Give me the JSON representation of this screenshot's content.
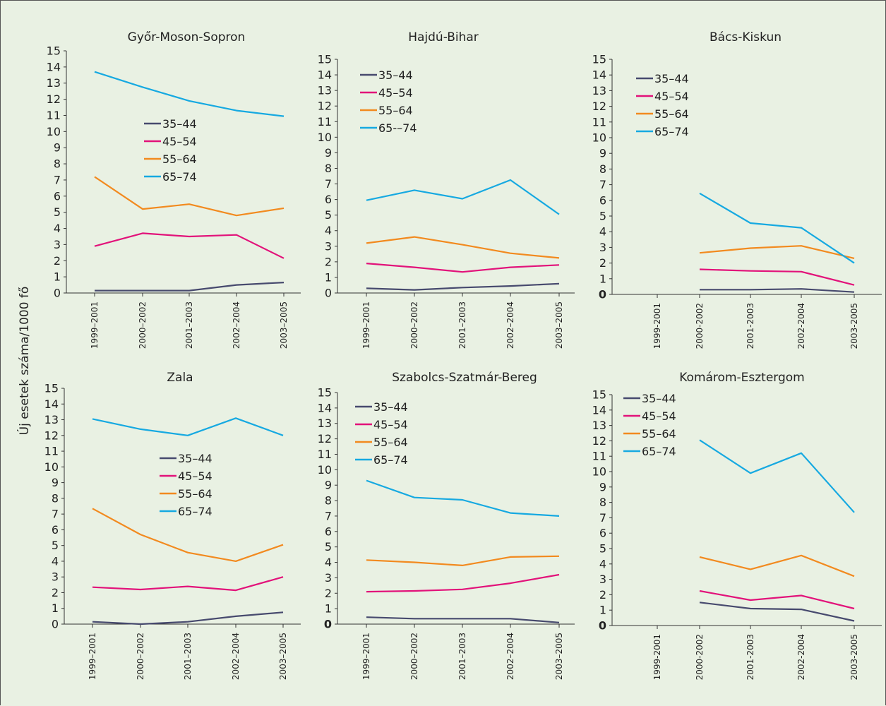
{
  "shared_ylabel": "Új esetek száma/1000 fő",
  "chart_data": [
    {
      "type": "line",
      "title": "Győr-Moson-Sopron",
      "categories": [
        "1999–2001",
        "2000–2002",
        "2001–2003",
        "2002–2004",
        "2003–2005"
      ],
      "ylim": [
        0,
        15
      ],
      "yticks": [
        "0",
        "1",
        "2",
        "3",
        "4",
        "5",
        "6",
        "7",
        "8",
        "9",
        "10",
        "11",
        "12",
        "13",
        "14",
        "15"
      ],
      "legend_placement": "center",
      "series": [
        {
          "name": "35–44",
          "color": "#474a6e",
          "values": [
            0.15,
            0.15,
            0.15,
            0.5,
            0.65
          ]
        },
        {
          "name": "45–54",
          "color": "#e2127a",
          "values": [
            2.9,
            3.7,
            3.5,
            3.6,
            2.15
          ]
        },
        {
          "name": "55–64",
          "color": "#f28a1f",
          "values": [
            7.2,
            5.2,
            5.5,
            4.8,
            5.25
          ]
        },
        {
          "name": "65–74",
          "color": "#16a9e1",
          "values": [
            13.7,
            12.75,
            11.9,
            11.3,
            10.95
          ]
        }
      ]
    },
    {
      "type": "line",
      "title": "Hajdú-Bihar",
      "categories": [
        "1999–2001",
        "2000–2002",
        "2001–2003",
        "2002–2004",
        "2003–2005"
      ],
      "ylim": [
        0,
        15
      ],
      "yticks": [
        "0",
        "1",
        "2",
        "3",
        "4",
        "5",
        "6",
        "7",
        "8",
        "9",
        "10",
        "11",
        "12",
        "13",
        "14",
        "15"
      ],
      "legend_placement": "top-left",
      "series": [
        {
          "name": "35–44",
          "color": "#474a6e",
          "values": [
            0.3,
            0.2,
            0.35,
            0.45,
            0.6
          ]
        },
        {
          "name": "45–54",
          "color": "#e2127a",
          "values": [
            1.9,
            1.65,
            1.35,
            1.65,
            1.8
          ]
        },
        {
          "name": "55–64",
          "color": "#f28a1f",
          "values": [
            3.2,
            3.6,
            3.1,
            2.55,
            2.25
          ]
        },
        {
          "name": "65-–74",
          "color": "#16a9e1",
          "values": [
            5.95,
            6.6,
            6.05,
            7.25,
            5.05
          ]
        }
      ]
    },
    {
      "type": "line",
      "title": "Bács-Kiskun",
      "categories": [
        "1999-2001",
        "2000-2002",
        "2001-2003",
        "2002-2004",
        "2003-2005"
      ],
      "ylim": [
        0,
        15
      ],
      "yticks": [
        "0",
        "1",
        "2",
        "3",
        "4",
        "5",
        "6",
        "7",
        "8",
        "9",
        "10",
        "11",
        "12",
        "13",
        "14",
        "15"
      ],
      "legend_placement": "top-left",
      "series": [
        {
          "name": "35–44",
          "color": "#474a6e",
          "values": [
            null,
            0.3,
            0.3,
            0.35,
            0.15
          ]
        },
        {
          "name": "45–54",
          "color": "#e2127a",
          "values": [
            null,
            1.6,
            1.5,
            1.45,
            0.6
          ]
        },
        {
          "name": "55–64",
          "color": "#f28a1f",
          "values": [
            null,
            2.65,
            2.95,
            3.1,
            2.3
          ]
        },
        {
          "name": "65–74",
          "color": "#16a9e1",
          "values": [
            null,
            6.45,
            4.55,
            4.25,
            2.0
          ]
        }
      ]
    },
    {
      "type": "line",
      "title": "Zala",
      "categories": [
        "1999–2001",
        "2000–2002",
        "2001–2003",
        "2002–2004",
        "2003–2005"
      ],
      "ylim": [
        0,
        15
      ],
      "yticks": [
        "0",
        "1",
        "2",
        "3",
        "4",
        "5",
        "6",
        "7",
        "8",
        "9",
        "10",
        "11",
        "12",
        "13",
        "14",
        "15"
      ],
      "legend_placement": "center",
      "series": [
        {
          "name": "35–44",
          "color": "#474a6e",
          "values": [
            0.15,
            0.0,
            0.15,
            0.5,
            0.75
          ]
        },
        {
          "name": "45–54",
          "color": "#e2127a",
          "values": [
            2.35,
            2.2,
            2.4,
            2.15,
            3.0
          ]
        },
        {
          "name": "55–64",
          "color": "#f28a1f",
          "values": [
            7.35,
            5.7,
            4.55,
            4.0,
            5.05
          ]
        },
        {
          "name": "65–74",
          "color": "#16a9e1",
          "values": [
            13.05,
            12.4,
            12.0,
            13.1,
            12.0
          ]
        }
      ]
    },
    {
      "type": "line",
      "title": "Szabolcs-Szatmár-Bereg",
      "categories": [
        "1999–2001",
        "2000–2002",
        "2001–2003",
        "2002–2004",
        "2003–2005"
      ],
      "ylim": [
        0,
        15
      ],
      "yticks": [
        "0",
        "1",
        "2",
        "3",
        "4",
        "5",
        "6",
        "7",
        "8",
        "9",
        "10",
        "11",
        "12",
        "13",
        "14",
        "15"
      ],
      "legend_placement": "top-left",
      "series": [
        {
          "name": "35–44",
          "color": "#474a6e",
          "values": [
            0.45,
            0.35,
            0.35,
            0.35,
            0.1
          ]
        },
        {
          "name": "45–54",
          "color": "#e2127a",
          "values": [
            2.1,
            2.15,
            2.25,
            2.65,
            3.2
          ]
        },
        {
          "name": "55–64",
          "color": "#f28a1f",
          "values": [
            4.15,
            4.0,
            3.8,
            4.35,
            4.4
          ]
        },
        {
          "name": "65–74",
          "color": "#16a9e1",
          "values": [
            9.3,
            8.2,
            8.05,
            7.2,
            7.0
          ]
        }
      ]
    },
    {
      "type": "line",
      "title": "Komárom-Esztergom",
      "categories": [
        "1999-2001",
        "2000-2002",
        "2001-2003",
        "2002-2004",
        "2003-2005"
      ],
      "ylim": [
        0,
        15
      ],
      "yticks": [
        "0",
        "1",
        "2",
        "3",
        "4",
        "5",
        "6",
        "7",
        "8",
        "9",
        "10",
        "11",
        "12",
        "13",
        "14",
        "15"
      ],
      "legend_placement": "top-left",
      "series": [
        {
          "name": "35–44",
          "color": "#474a6e",
          "values": [
            null,
            1.5,
            1.1,
            1.05,
            0.3
          ]
        },
        {
          "name": "45–54",
          "color": "#e2127a",
          "values": [
            null,
            2.25,
            1.65,
            1.95,
            1.1
          ]
        },
        {
          "name": "55–64",
          "color": "#f28a1f",
          "values": [
            null,
            4.45,
            3.65,
            4.55,
            3.2
          ]
        },
        {
          "name": "65–74",
          "color": "#16a9e1",
          "values": [
            null,
            12.05,
            9.9,
            11.2,
            7.35
          ]
        }
      ]
    }
  ]
}
